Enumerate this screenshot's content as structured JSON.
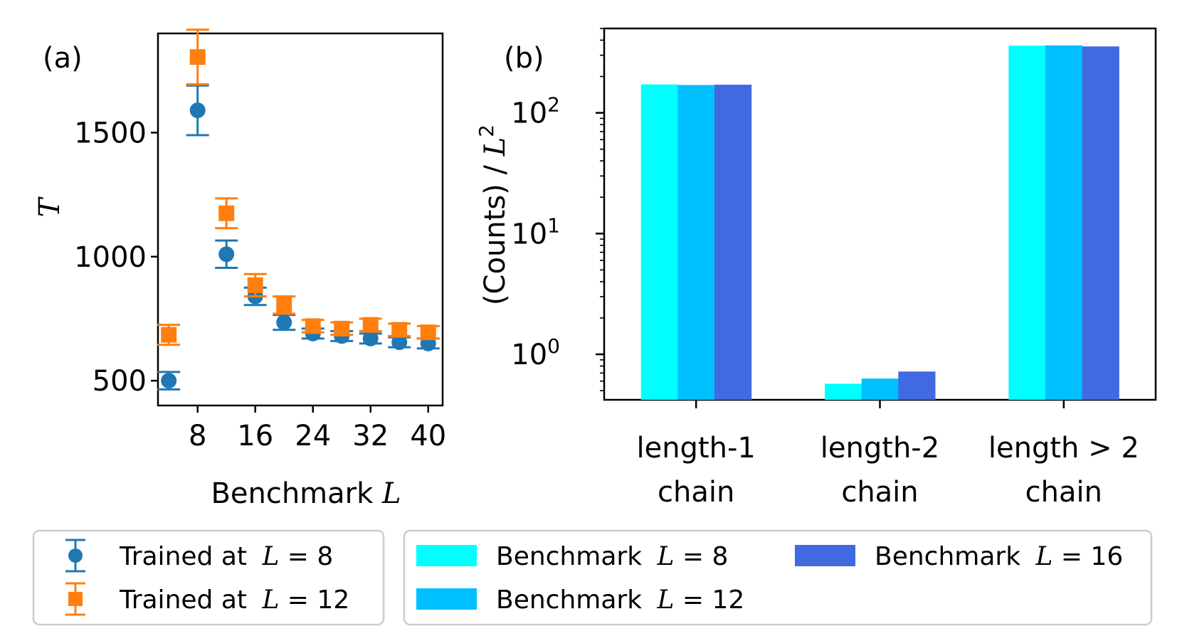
{
  "chart_data": [
    {
      "panel_label": "(a)",
      "type": "scatter",
      "ylabel": "T",
      "xlabel_text": "Benchmark",
      "xlabel_var": "L",
      "x_ticks": [
        "8",
        "16",
        "24",
        "32",
        "40"
      ],
      "x_tick_values": [
        8,
        16,
        24,
        32,
        40
      ],
      "y_ticks": [
        "500",
        "1000",
        "1500"
      ],
      "y_tick_values": [
        500,
        1000,
        1500
      ],
      "xlim": [
        2.5,
        42
      ],
      "ylim": [
        400,
        1900
      ],
      "series": [
        {
          "name": "Trained at L = 8",
          "legend_prefix": "Trained at ",
          "legend_var": "L",
          "legend_suffix": " = 8",
          "marker": "circle",
          "color": "#1f77b4",
          "x": [
            4,
            8,
            12,
            16,
            20,
            24,
            28,
            32,
            36,
            40
          ],
          "y": [
            500,
            1590,
            1010,
            840,
            735,
            690,
            680,
            670,
            655,
            650
          ],
          "err": [
            35,
            100,
            55,
            35,
            30,
            20,
            20,
            20,
            20,
            20
          ]
        },
        {
          "name": "Trained at L = 12",
          "legend_prefix": "Trained at ",
          "legend_var": "L",
          "legend_suffix": " = 12",
          "marker": "square",
          "color": "#ff7f0e",
          "x": [
            4,
            8,
            12,
            16,
            20,
            24,
            28,
            32,
            36,
            40
          ],
          "y": [
            685,
            1805,
            1175,
            885,
            805,
            720,
            710,
            725,
            705,
            695
          ],
          "err": [
            40,
            110,
            60,
            45,
            35,
            25,
            25,
            25,
            25,
            25
          ]
        }
      ]
    },
    {
      "panel_label": "(b)",
      "type": "bar",
      "yscale": "log",
      "ylabel": "(Counts) / L²",
      "ylabel_text": "(Counts) / ",
      "ylabel_var": "L",
      "ylabel_exp": "2",
      "ylim": [
        0.42,
        500
      ],
      "y_ticks": [
        {
          "base": "10",
          "exp": "0",
          "value": 1
        },
        {
          "base": "10",
          "exp": "1",
          "value": 10
        },
        {
          "base": "10",
          "exp": "2",
          "value": 100
        }
      ],
      "categories": [
        {
          "line1": "length-1",
          "line2": "chain"
        },
        {
          "line1": "length-2",
          "line2": "chain"
        },
        {
          "line1": "length > 2",
          "line2": "chain"
        }
      ],
      "series": [
        {
          "name": "Benchmark L = 8",
          "legend_prefix": "Benchmark ",
          "legend_var": "L",
          "legend_suffix": " = 8",
          "color": "#00ffff",
          "values": [
            172,
            0.57,
            360
          ]
        },
        {
          "name": "Benchmark L = 12",
          "legend_prefix": "Benchmark ",
          "legend_var": "L",
          "legend_suffix": " = 12",
          "color": "#00bfff",
          "values": [
            170,
            0.63,
            362
          ]
        },
        {
          "name": "Benchmark L = 16",
          "legend_prefix": "Benchmark ",
          "legend_var": "L",
          "legend_suffix": " = 16",
          "color": "#4169e1",
          "values": [
            171,
            0.72,
            355
          ]
        }
      ]
    }
  ]
}
